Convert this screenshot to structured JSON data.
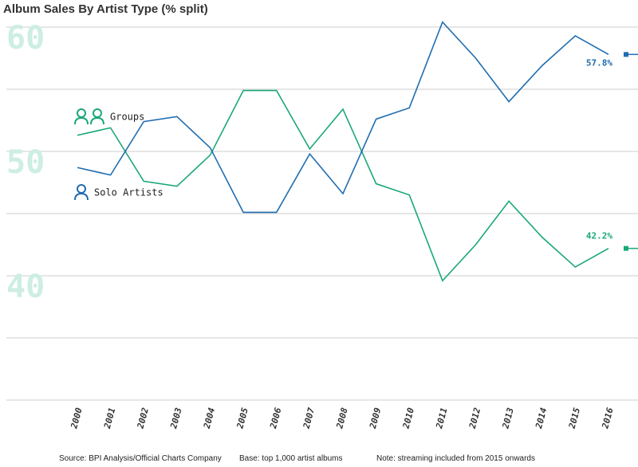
{
  "chart_data": {
    "type": "line",
    "title": "Album Sales By Artist Type (% split)",
    "x": [
      "2000",
      "2001",
      "2002",
      "2003",
      "2004",
      "2005",
      "2006",
      "2007",
      "2008",
      "2009",
      "2010",
      "2011",
      "2012",
      "2013",
      "2014",
      "2015",
      "2016"
    ],
    "series": [
      {
        "name": "Groups",
        "color": "#1aa877",
        "values": [
          51.3,
          51.9,
          47.6,
          47.2,
          49.7,
          54.9,
          54.9,
          50.2,
          53.4,
          47.4,
          46.5,
          39.6,
          42.5,
          46.0,
          43.1,
          40.7,
          42.2
        ],
        "value_labels": [
          null,
          null,
          null,
          null,
          null,
          null,
          null,
          null,
          null,
          null,
          null,
          null,
          null,
          null,
          null,
          null,
          "42.2%"
        ]
      },
      {
        "name": "Solo Artists",
        "color": "#1f6db0",
        "values": [
          48.7,
          48.1,
          52.4,
          52.8,
          50.3,
          45.1,
          45.1,
          49.8,
          46.6,
          52.6,
          53.5,
          60.4,
          57.5,
          54.0,
          56.9,
          59.3,
          57.8
        ],
        "value_labels": [
          null,
          null,
          null,
          null,
          null,
          null,
          null,
          null,
          null,
          null,
          null,
          null,
          null,
          null,
          null,
          null,
          "57.8%"
        ]
      }
    ],
    "ylim": [
      30,
      61
    ],
    "yticks": [
      40,
      50,
      60
    ],
    "minor_yticks": [
      30,
      35,
      45,
      55
    ],
    "grid": true,
    "footnotes": [
      "Source: BPI Analysis/Official Charts Company",
      "Base: top 1,000 artist albums",
      "Note: streaming included from 2015 onwards"
    ]
  }
}
